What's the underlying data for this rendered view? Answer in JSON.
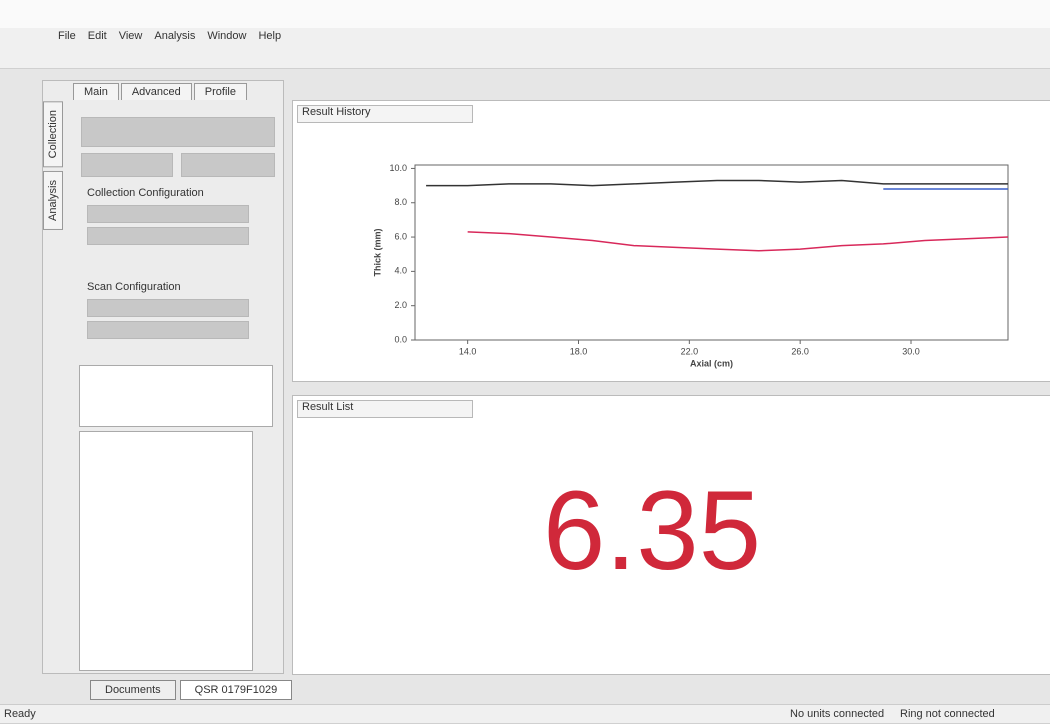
{
  "menu": [
    "File",
    "Edit",
    "View",
    "Analysis",
    "Window",
    "Help"
  ],
  "left_tabs": [
    "Main",
    "Advanced",
    "Profile"
  ],
  "side_tabs": [
    "Collection",
    "Analysis"
  ],
  "collection_heading": "Collection Configuration",
  "scan_heading": "Scan Configuration",
  "chart_panel_dropdown": "Result History",
  "result_panel_dropdown": "Result List",
  "result_value": "6.35",
  "bottom_tabs": [
    "Documents",
    "QSR 0179F1029"
  ],
  "status": [
    "Ready",
    "No units connected",
    "Ring not connected"
  ],
  "chart_data": {
    "type": "line",
    "x_label": "Axial (cm)",
    "y_label": "Thick (mm)",
    "x": [
      12.5,
      14,
      15.5,
      17,
      18.5,
      20,
      21.5,
      23,
      24.5,
      26,
      27.5,
      29,
      30.5,
      32,
      33.5
    ],
    "series": [
      {
        "color": "#333333",
        "values": [
          9.0,
          9.0,
          9.1,
          9.1,
          9.0,
          9.1,
          9.2,
          9.3,
          9.3,
          9.2,
          9.3,
          9.1,
          9.1,
          9.1,
          9.1
        ]
      },
      {
        "color": "#d8285a",
        "values": [
          null,
          6.3,
          6.2,
          6.0,
          5.8,
          5.5,
          5.4,
          5.3,
          5.2,
          5.3,
          5.5,
          5.6,
          5.8,
          5.9,
          6.0
        ]
      },
      {
        "color": "#3a5fc8",
        "values": [
          null,
          null,
          null,
          null,
          null,
          null,
          null,
          null,
          null,
          null,
          null,
          8.8,
          8.8,
          8.8,
          8.8
        ]
      }
    ],
    "xlim": [
      12.1,
      33.5
    ],
    "ylim": [
      0,
      10.2
    ],
    "xticks": [
      {
        "value": 14,
        "label": "14.0"
      },
      {
        "value": 18,
        "label": "18.0"
      },
      {
        "value": 22,
        "label": "22.0"
      },
      {
        "value": 26,
        "label": "26.0"
      },
      {
        "value": 30,
        "label": "30.0"
      }
    ],
    "yticks": [
      {
        "value": 0,
        "label": "0.0"
      },
      {
        "value": 2,
        "label": "2.0"
      },
      {
        "value": 4,
        "label": "4.0"
      },
      {
        "value": 6,
        "label": "6.0"
      },
      {
        "value": 8,
        "label": "8.0"
      },
      {
        "value": 10,
        "label": "10.0"
      }
    ]
  }
}
